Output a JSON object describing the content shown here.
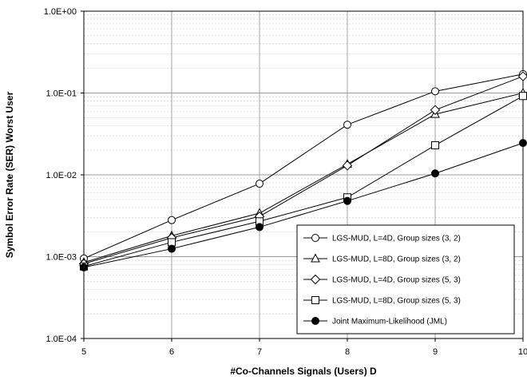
{
  "chart_data": {
    "type": "line",
    "xlabel": "#Co-Channels Signals (Users) D",
    "ylabel": "Symbol Error Rate (SER) Worst User",
    "x": [
      5,
      6,
      7,
      8,
      9,
      10
    ],
    "xlim": [
      5,
      10
    ],
    "ylim": [
      0.0001,
      1
    ],
    "yscale": "log",
    "x_tick_labels": [
      "5",
      "6",
      "7",
      "8",
      "9",
      "10"
    ],
    "y_tick_labels": [
      "1.0E-04",
      "1.0E-03",
      "1.0E-02",
      "1.0E-01",
      "1.0E+00"
    ],
    "grid": true,
    "legend_position": "bottom-right",
    "series": [
      {
        "name": "LGS-MUD, L=4D, Group sizes (3, 2)",
        "marker": "circle-open",
        "values": [
          0.00095,
          0.0028,
          0.0078,
          0.041,
          0.105,
          0.17
        ]
      },
      {
        "name": "LGS-MUD, L=8D, Group sizes (3, 2)",
        "marker": "triangle-open",
        "values": [
          0.00085,
          0.0018,
          0.0034,
          0.0135,
          0.055,
          0.1
        ]
      },
      {
        "name": "LGS-MUD, L=4D, Group sizes (5, 3)",
        "marker": "diamond-open",
        "values": [
          0.00082,
          0.0017,
          0.0031,
          0.013,
          0.062,
          0.16
        ]
      },
      {
        "name": "LGS-MUD, L=8D, Group sizes (5, 3)",
        "marker": "square-open",
        "values": [
          0.00076,
          0.0015,
          0.0027,
          0.0053,
          0.023,
          0.092
        ]
      },
      {
        "name": "Joint Maximum-Likelihood (JML)",
        "marker": "circle-filled",
        "values": [
          0.00074,
          0.00125,
          0.0023,
          0.0048,
          0.0104,
          0.0245
        ]
      }
    ]
  }
}
